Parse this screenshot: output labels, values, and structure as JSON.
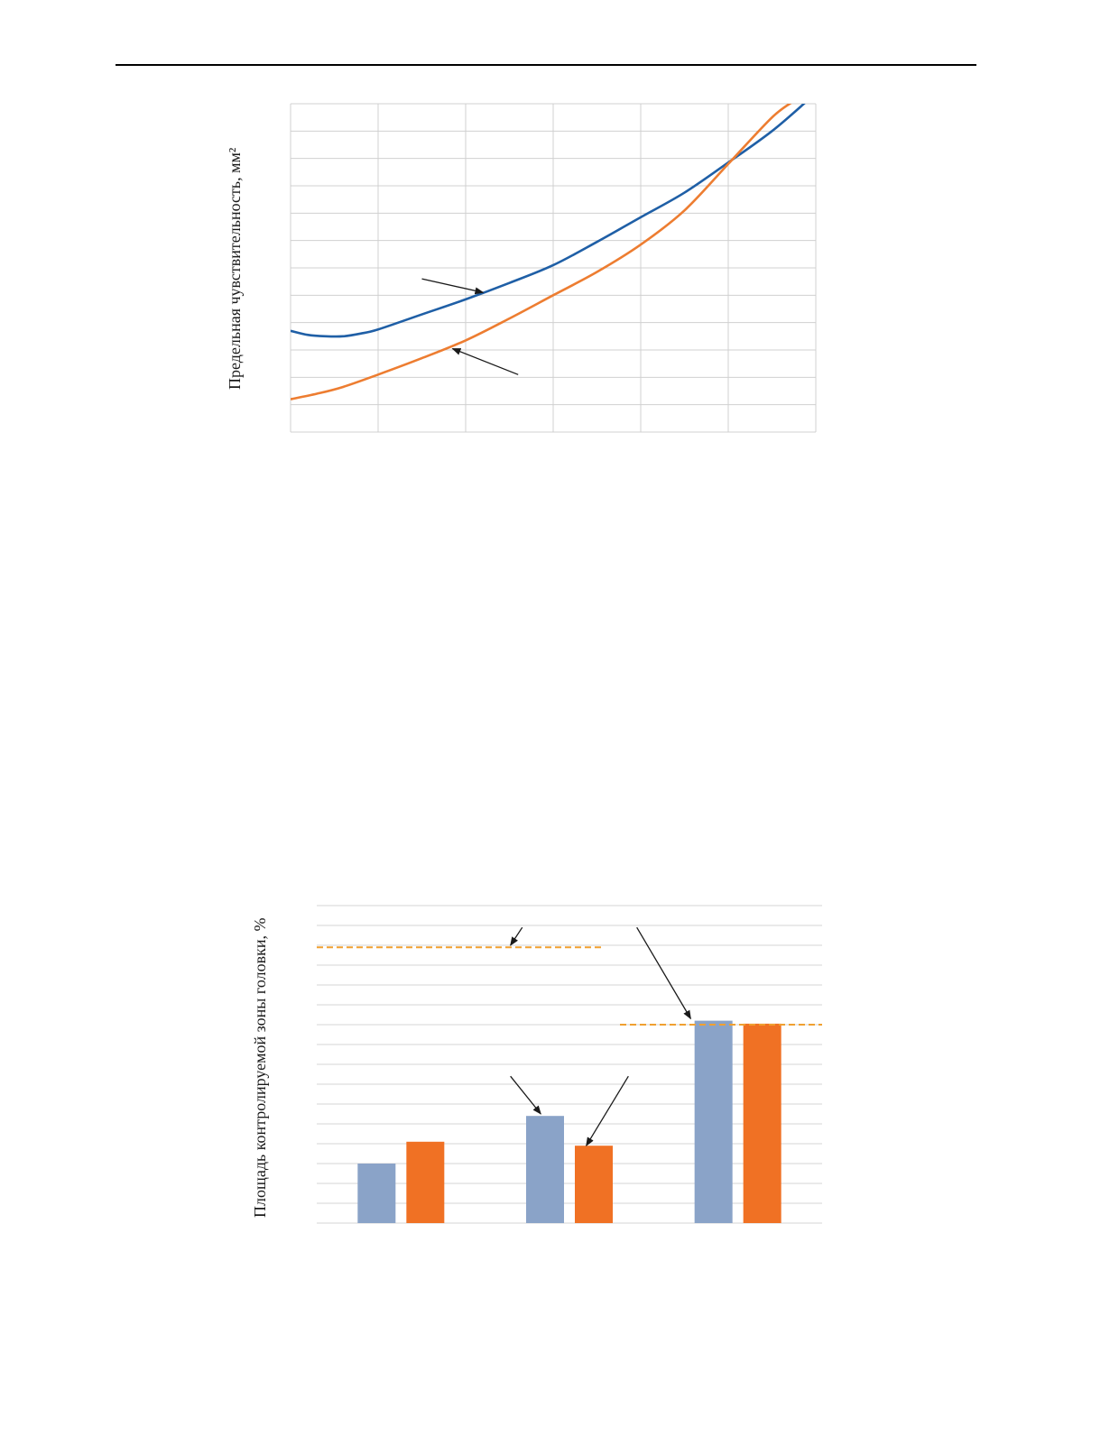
{
  "chart_data": [
    {
      "type": "line",
      "title": "",
      "xlabel": "",
      "ylabel": "Предельная чувствительность, мм²",
      "grid": true,
      "xlim": [
        0,
        6
      ],
      "ylim": [
        0,
        12
      ],
      "series": [
        {
          "color": "#1f5fa6",
          "points": [
            [
              0,
              3.7
            ],
            [
              0.2,
              3.55
            ],
            [
              0.4,
              3.5
            ],
            [
              0.6,
              3.5
            ],
            [
              0.8,
              3.6
            ],
            [
              1.0,
              3.75
            ],
            [
              1.5,
              4.3
            ],
            [
              2.0,
              4.85
            ],
            [
              2.5,
              5.45
            ],
            [
              3.0,
              6.1
            ],
            [
              3.5,
              6.95
            ],
            [
              4.0,
              7.85
            ],
            [
              4.5,
              8.75
            ],
            [
              5.0,
              9.85
            ],
            [
              5.5,
              11.0
            ],
            [
              5.9,
              12.1
            ]
          ]
        },
        {
          "color": "#ed7d31",
          "points": [
            [
              0,
              1.2
            ],
            [
              0.3,
              1.4
            ],
            [
              0.6,
              1.65
            ],
            [
              1.0,
              2.1
            ],
            [
              1.5,
              2.7
            ],
            [
              2.0,
              3.35
            ],
            [
              2.5,
              4.15
            ],
            [
              3.0,
              5.0
            ],
            [
              3.5,
              5.85
            ],
            [
              4.0,
              6.85
            ],
            [
              4.5,
              8.1
            ],
            [
              5.0,
              9.8
            ],
            [
              5.5,
              11.5
            ],
            [
              5.75,
              12.1
            ]
          ]
        }
      ],
      "annotations": [
        {
          "type": "arrow",
          "from": [
            1.5,
            5.6
          ],
          "to": [
            2.2,
            5.1
          ]
        },
        {
          "type": "arrow",
          "from": [
            2.6,
            2.1
          ],
          "to": [
            1.85,
            3.05
          ]
        }
      ]
    },
    {
      "type": "bar",
      "title": "",
      "xlabel": "",
      "ylabel": "Площадь контролируемой зоны головки, %",
      "grid": true,
      "ylim": [
        0,
        16
      ],
      "groups": 3,
      "series": [
        {
          "color": "#8aa3c8",
          "values": [
            3.0,
            5.4,
            10.2
          ]
        },
        {
          "color": "#f07124",
          "values": [
            4.1,
            3.9,
            10.05
          ]
        }
      ],
      "reference_lines": [
        {
          "value": 13.9,
          "group_span": [
            0,
            1.7
          ],
          "color": "#f0a030",
          "style": "dashed"
        },
        {
          "value": 10.0,
          "group_span": [
            1.8,
            3.0
          ],
          "color": "#f0a030",
          "style": "dashed"
        }
      ],
      "annotations": [
        {
          "type": "arrow",
          "from": [
            1.22,
            14.9
          ],
          "to": [
            1.15,
            14.0
          ]
        },
        {
          "type": "arrow",
          "from": [
            1.9,
            14.9
          ],
          "to": [
            2.22,
            10.3
          ]
        },
        {
          "type": "arrow",
          "from": [
            1.15,
            7.4
          ],
          "to": [
            1.33,
            5.5
          ]
        },
        {
          "type": "arrow",
          "from": [
            1.85,
            7.4
          ],
          "to": [
            1.6,
            3.9
          ]
        }
      ]
    }
  ]
}
